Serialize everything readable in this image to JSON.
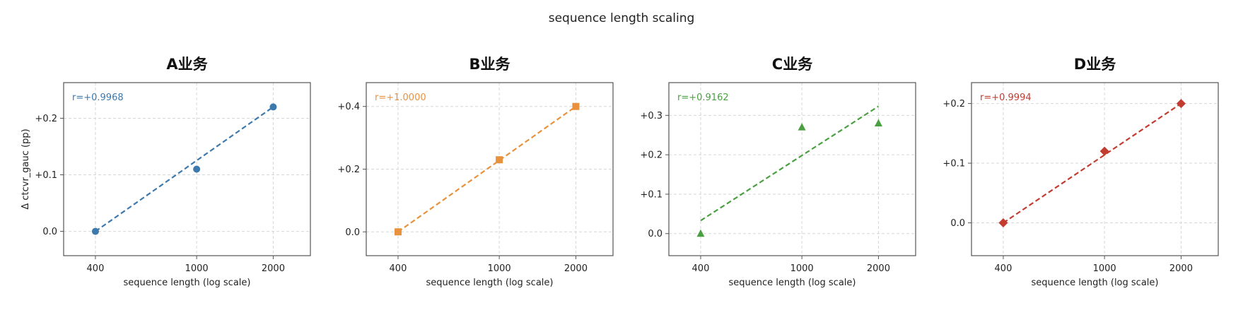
{
  "figure": {
    "title": "sequence length scaling"
  },
  "chart_data": [
    {
      "type": "scatter",
      "title": "A业务",
      "xlabel": "sequence length (log scale)",
      "ylabel": "Δ ctcvr_gauc (pp)",
      "xscale": "log",
      "xticks": [
        400,
        1000,
        2000
      ],
      "xtick_labels": [
        "400",
        "1000",
        "2000"
      ],
      "yticks": [
        0.0,
        0.1,
        0.2
      ],
      "ytick_labels": [
        "0.0",
        "+0.1",
        "+0.2"
      ],
      "xlim": [
        300,
        2800
      ],
      "ylim": [
        -0.043,
        0.263
      ],
      "grid": true,
      "color": "#3d79ad",
      "marker": "circle",
      "x": [
        400,
        1000,
        2000
      ],
      "y": [
        0.0,
        0.11,
        0.22
      ],
      "fit": [
        [
          400,
          0.0
        ],
        [
          2000,
          0.22
        ]
      ],
      "annotation": "r=+0.9968"
    },
    {
      "type": "scatter",
      "title": "B业务",
      "xlabel": "sequence length (log scale)",
      "ylabel": "",
      "xscale": "log",
      "xticks": [
        400,
        1000,
        2000
      ],
      "xtick_labels": [
        "400",
        "1000",
        "2000"
      ],
      "yticks": [
        0.0,
        0.2,
        0.4
      ],
      "ytick_labels": [
        "0.0",
        "+0.2",
        "+0.4"
      ],
      "xlim": [
        300,
        2800
      ],
      "ylim": [
        -0.076,
        0.476
      ],
      "grid": true,
      "color": "#e8923e",
      "marker": "square",
      "x": [
        400,
        1000,
        2000
      ],
      "y": [
        0.0,
        0.23,
        0.4
      ],
      "fit": [
        [
          400,
          0.0
        ],
        [
          2000,
          0.4
        ]
      ],
      "annotation": "r=+1.0000"
    },
    {
      "type": "scatter",
      "title": "C业务",
      "xlabel": "sequence length (log scale)",
      "ylabel": "",
      "xscale": "log",
      "xticks": [
        400,
        1000,
        2000
      ],
      "xtick_labels": [
        "400",
        "1000",
        "2000"
      ],
      "yticks": [
        0.0,
        0.1,
        0.2,
        0.3
      ],
      "ytick_labels": [
        "0.0",
        "+0.1",
        "+0.2",
        "+0.3"
      ],
      "xlim": [
        300,
        2800
      ],
      "ylim": [
        -0.056,
        0.383
      ],
      "grid": true,
      "color": "#4aa040",
      "marker": "triangle",
      "x": [
        400,
        1000,
        2000
      ],
      "y": [
        0.0,
        0.27,
        0.28
      ],
      "fit": [
        [
          400,
          0.033
        ],
        [
          2000,
          0.323
        ]
      ],
      "annotation": "r=+0.9162"
    },
    {
      "type": "scatter",
      "title": "D业务",
      "xlabel": "sequence length (log scale)",
      "ylabel": "",
      "xscale": "log",
      "xticks": [
        400,
        1000,
        2000
      ],
      "xtick_labels": [
        "400",
        "1000",
        "2000"
      ],
      "yticks": [
        0.0,
        0.1,
        0.2
      ],
      "ytick_labels": [
        "0.0",
        "+0.1",
        "+0.2"
      ],
      "xlim": [
        300,
        2800
      ],
      "ylim": [
        -0.055,
        0.235
      ],
      "grid": true,
      "color": "#c33c30",
      "marker": "diamond",
      "x": [
        400,
        1000,
        2000
      ],
      "y": [
        0.0,
        0.12,
        0.2
      ],
      "fit": [
        [
          400,
          0.0
        ],
        [
          2000,
          0.2
        ]
      ],
      "annotation": "r=+0.9994"
    }
  ]
}
